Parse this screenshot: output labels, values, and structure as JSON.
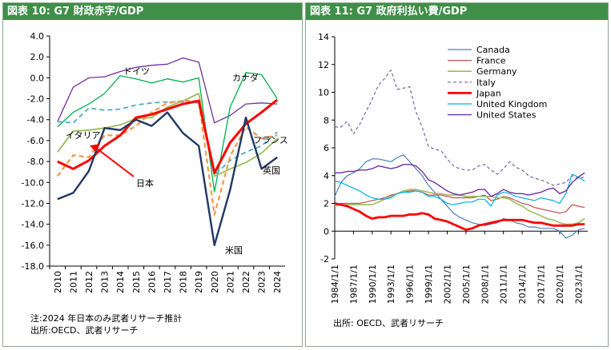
{
  "panels": {
    "left_title": "図表 10: G7 財政赤字/GDP",
    "left_note": "注:2024 年日本のみ武者リサーチ推計",
    "left_source": "出所:OECD、武者リサーチ",
    "right_title": "図表 11: G7 政府利払い費/GDP",
    "right_source": "出所: OECD、武者リサーチ"
  },
  "chart_data": [
    {
      "type": "line",
      "title": "図表 10: G7 財政赤字/GDP",
      "xlabel": "",
      "ylabel": "",
      "x": [
        2010,
        2011,
        2012,
        2013,
        2014,
        2015,
        2016,
        2017,
        2018,
        2019,
        2020,
        2021,
        2022,
        2023,
        2024
      ],
      "ylim": [
        -18,
        4
      ],
      "yticks": [
        -18,
        -16,
        -14,
        -12,
        -10,
        -8,
        -6,
        -4,
        -2,
        0,
        2,
        4
      ],
      "grid": false,
      "legend": "inline labels",
      "series": [
        {
          "name": "ドイツ",
          "color": "#7030a0",
          "style": "solid",
          "width": 1.3,
          "values": [
            -4.2,
            -0.9,
            0.0,
            0.1,
            0.6,
            1.0,
            1.2,
            1.3,
            1.9,
            1.5,
            -4.3,
            -3.6,
            -2.5,
            -2.4,
            -2.5
          ]
        },
        {
          "name": "カナダ",
          "color": "#00b050",
          "style": "solid",
          "width": 1.3,
          "values": [
            -4.7,
            -3.3,
            -2.5,
            -1.5,
            0.2,
            -0.1,
            -0.5,
            -0.1,
            -0.4,
            0.0,
            -10.9,
            -2.8,
            0.5,
            0.3,
            -2.0
          ]
        },
        {
          "name": "イタリア",
          "color": "#9bbb59",
          "style": "solid",
          "width": 1.8,
          "values": [
            -7.1,
            -5.1,
            -5.0,
            -4.8,
            -4.5,
            -3.9,
            -3.8,
            -2.8,
            -2.2,
            -1.5,
            -9.4,
            -8.7,
            -8.1,
            -7.2,
            -5.8
          ]
        },
        {
          "name": "フランス",
          "color": "#4bacc6",
          "style": "dashed",
          "width": 1.8,
          "values": [
            -4.2,
            -4.3,
            -2.9,
            -3.1,
            -3.0,
            -2.6,
            -2.4,
            -2.3,
            -2.3,
            -2.4,
            -9.3,
            -7.9,
            -7.1,
            -6.5,
            -5.2
          ]
        },
        {
          "name": "英国",
          "color": "#f79646",
          "style": "dashed",
          "width": 2.2,
          "values": [
            -9.4,
            -7.4,
            -7.6,
            -5.5,
            -5.5,
            -4.6,
            -3.3,
            -2.4,
            -2.2,
            -2.2,
            -13.1,
            -7.5,
            -4.7,
            -5.8,
            -5.5
          ]
        },
        {
          "name": "日本",
          "color": "#ff0000",
          "style": "solid",
          "width": 3,
          "values": [
            -8.0,
            -8.7,
            -7.9,
            -6.5,
            -5.5,
            -3.8,
            -3.5,
            -3.0,
            -2.5,
            -2.2,
            -9.1,
            -6.2,
            -4.4,
            -3.3,
            -2.1
          ]
        },
        {
          "name": "米国",
          "color": "#1f3864",
          "style": "solid",
          "width": 2.4,
          "values": [
            -11.6,
            -11.0,
            -8.9,
            -4.8,
            -5.0,
            -4.0,
            -4.6,
            -3.3,
            -5.3,
            -6.5,
            -16.0,
            -10.7,
            -3.8,
            -8.7,
            -7.6
          ]
        }
      ],
      "annotations": [
        {
          "text": "日本",
          "arrow": true
        }
      ]
    },
    {
      "type": "line",
      "title": "図表 11: G7 政府利払い費/GDP",
      "xlabel": "",
      "ylabel": "",
      "ylim": [
        -2,
        14
      ],
      "yticks": [
        -2,
        0,
        2,
        4,
        6,
        8,
        10,
        12,
        14
      ],
      "xrange": [
        1984,
        2024.5
      ],
      "xticks": [
        "1984/1/1",
        "1987/1/1",
        "1990/1/1",
        "1993/1/1",
        "1996/1/1",
        "1999/1/1",
        "2002/1/1",
        "2005/1/1",
        "2008/1/1",
        "2011/1/1",
        "2014/1/1",
        "2017/1/1",
        "2020/1/1",
        "2023/1/1"
      ],
      "grid": false,
      "legend": "top-center",
      "series": [
        {
          "name": "Canada",
          "color": "#4a7ebb",
          "style": "solid",
          "width": 1.2,
          "x": [
            1984,
            1985,
            1986,
            1987,
            1988,
            1989,
            1990,
            1991,
            1992,
            1993,
            1994,
            1995,
            1996,
            1997,
            1998,
            1999,
            2000,
            2001,
            2002,
            2003,
            2004,
            2005,
            2006,
            2007,
            2008,
            2009,
            2010,
            2011,
            2012,
            2013,
            2014,
            2015,
            2016,
            2017,
            2018,
            2019,
            2020,
            2021,
            2022,
            2023,
            2024
          ],
          "y": [
            2.5,
            3.5,
            4.0,
            4.2,
            4.5,
            5.0,
            5.2,
            5.2,
            5.1,
            5.0,
            5.3,
            5.5,
            5.0,
            4.5,
            4.0,
            3.3,
            2.8,
            2.3,
            1.8,
            1.3,
            1.0,
            0.8,
            0.6,
            0.5,
            0.4,
            0.5,
            0.6,
            0.9,
            0.8,
            0.6,
            0.5,
            0.3,
            0.3,
            0.2,
            0.2,
            0.2,
            0.0,
            -0.5,
            -0.3,
            0.1,
            0.2
          ]
        },
        {
          "name": "France",
          "color": "#c0504d",
          "style": "solid",
          "width": 1.2,
          "x": [
            1984,
            1985,
            1986,
            1987,
            1988,
            1989,
            1990,
            1991,
            1992,
            1993,
            1994,
            1995,
            1996,
            1997,
            1998,
            1999,
            2000,
            2001,
            2002,
            2003,
            2004,
            2005,
            2006,
            2007,
            2008,
            2009,
            2010,
            2011,
            2012,
            2013,
            2014,
            2015,
            2016,
            2017,
            2018,
            2019,
            2020,
            2021,
            2022,
            2023,
            2024
          ],
          "y": [
            1.9,
            2.0,
            2.0,
            2.0,
            2.0,
            2.1,
            2.2,
            2.3,
            2.4,
            2.6,
            2.7,
            2.8,
            2.9,
            2.9,
            2.8,
            2.6,
            2.6,
            2.6,
            2.5,
            2.4,
            2.4,
            2.4,
            2.4,
            2.5,
            2.6,
            2.2,
            2.3,
            2.5,
            2.4,
            2.2,
            2.0,
            1.9,
            1.7,
            1.6,
            1.5,
            1.4,
            1.3,
            1.4,
            1.9,
            1.8,
            1.7
          ]
        },
        {
          "name": "Germany",
          "color": "#9bbb59",
          "style": "solid",
          "width": 1.6,
          "x": [
            1984,
            1985,
            1986,
            1987,
            1988,
            1989,
            1990,
            1991,
            1992,
            1993,
            1994,
            1995,
            1996,
            1997,
            1998,
            1999,
            2000,
            2001,
            2002,
            2003,
            2004,
            2005,
            2006,
            2007,
            2008,
            2009,
            2010,
            2011,
            2012,
            2013,
            2014,
            2015,
            2016,
            2017,
            2018,
            2019,
            2020,
            2021,
            2022,
            2023,
            2024
          ],
          "y": [
            1.8,
            1.9,
            1.9,
            1.9,
            1.9,
            1.9,
            1.9,
            2.1,
            2.3,
            2.5,
            2.7,
            2.9,
            3.0,
            3.0,
            2.9,
            2.8,
            2.7,
            2.7,
            2.6,
            2.6,
            2.6,
            2.5,
            2.5,
            2.5,
            2.5,
            2.5,
            2.4,
            2.4,
            2.3,
            2.0,
            1.8,
            1.5,
            1.3,
            1.1,
            0.9,
            0.8,
            0.6,
            0.5,
            0.5,
            0.6,
            0.9
          ]
        },
        {
          "name": "Italy",
          "color": "#8064a2",
          "style": "dashed",
          "width": 1.2,
          "x": [
            1984,
            1985,
            1986,
            1987,
            1988,
            1989,
            1990,
            1991,
            1992,
            1993,
            1994,
            1995,
            1996,
            1997,
            1998,
            1999,
            2000,
            2001,
            2002,
            2003,
            2004,
            2005,
            2006,
            2007,
            2008,
            2009,
            2010,
            2011,
            2012,
            2013,
            2014,
            2015,
            2016,
            2017,
            2018,
            2019,
            2020,
            2021,
            2022,
            2023,
            2024
          ],
          "y": [
            7.5,
            7.5,
            7.9,
            7.0,
            7.7,
            8.6,
            9.5,
            10.5,
            11.0,
            11.6,
            10.2,
            10.3,
            10.4,
            8.6,
            7.5,
            6.1,
            5.9,
            5.8,
            5.2,
            4.7,
            4.5,
            4.4,
            4.4,
            4.7,
            4.8,
            4.4,
            4.1,
            4.5,
            5.0,
            4.6,
            4.4,
            4.0,
            3.8,
            3.7,
            3.5,
            3.3,
            3.4,
            3.5,
            4.0,
            3.8,
            3.9
          ]
        },
        {
          "name": "Japan",
          "color": "#ff0000",
          "style": "solid",
          "width": 2.8,
          "x": [
            1984,
            1985,
            1986,
            1987,
            1988,
            1989,
            1990,
            1991,
            1992,
            1993,
            1994,
            1995,
            1996,
            1997,
            1998,
            1999,
            2000,
            2001,
            2002,
            2003,
            2004,
            2005,
            2006,
            2007,
            2008,
            2009,
            2010,
            2011,
            2012,
            2013,
            2014,
            2015,
            2016,
            2017,
            2018,
            2019,
            2020,
            2021,
            2022,
            2023,
            2024
          ],
          "y": [
            2.0,
            1.9,
            1.8,
            1.6,
            1.4,
            1.1,
            0.9,
            1.0,
            1.0,
            1.1,
            1.1,
            1.1,
            1.2,
            1.2,
            1.3,
            1.2,
            0.9,
            0.8,
            0.7,
            0.5,
            0.3,
            0.1,
            0.2,
            0.4,
            0.5,
            0.6,
            0.7,
            0.8,
            0.8,
            0.8,
            0.8,
            0.7,
            0.6,
            0.6,
            0.5,
            0.4,
            0.4,
            0.4,
            0.4,
            0.5,
            0.5
          ]
        },
        {
          "name": "United Kingdom",
          "color": "#00b0f0",
          "style": "solid",
          "width": 1.2,
          "x": [
            1984,
            1985,
            1986,
            1987,
            1988,
            1989,
            1990,
            1991,
            1992,
            1993,
            1994,
            1995,
            1996,
            1997,
            1998,
            1999,
            2000,
            2001,
            2002,
            2003,
            2004,
            2005,
            2006,
            2007,
            2008,
            2009,
            2010,
            2011,
            2012,
            2013,
            2014,
            2015,
            2016,
            2017,
            2018,
            2019,
            2020,
            2021,
            2022,
            2023,
            2024
          ],
          "y": [
            3.6,
            3.5,
            3.3,
            3.1,
            2.9,
            2.6,
            2.4,
            2.3,
            2.3,
            2.4,
            2.7,
            2.8,
            2.8,
            2.9,
            2.8,
            2.5,
            2.5,
            2.3,
            2.0,
            1.9,
            2.0,
            2.1,
            2.1,
            2.3,
            2.3,
            1.8,
            2.6,
            2.8,
            2.7,
            2.5,
            2.4,
            2.3,
            2.2,
            2.4,
            2.3,
            2.2,
            2.0,
            2.7,
            4.1,
            3.9,
            3.6
          ]
        },
        {
          "name": "United States",
          "color": "#7030a0",
          "style": "solid",
          "width": 1.4,
          "x": [
            1984,
            1985,
            1986,
            1987,
            1988,
            1989,
            1990,
            1991,
            1992,
            1993,
            1994,
            1995,
            1996,
            1997,
            1998,
            1999,
            2000,
            2001,
            2002,
            2003,
            2004,
            2005,
            2006,
            2007,
            2008,
            2009,
            2010,
            2011,
            2012,
            2013,
            2014,
            2015,
            2016,
            2017,
            2018,
            2019,
            2020,
            2021,
            2022,
            2023,
            2024
          ],
          "y": [
            4.2,
            4.2,
            4.3,
            4.3,
            4.4,
            4.4,
            4.5,
            4.7,
            4.6,
            4.5,
            4.6,
            4.8,
            4.8,
            4.7,
            4.3,
            3.7,
            3.5,
            3.2,
            2.9,
            2.7,
            2.6,
            2.7,
            2.8,
            3.0,
            3.0,
            2.5,
            2.7,
            3.0,
            2.8,
            2.7,
            2.7,
            2.6,
            2.7,
            2.8,
            3.0,
            3.1,
            2.7,
            2.9,
            3.5,
            3.9,
            4.2
          ]
        }
      ]
    }
  ]
}
